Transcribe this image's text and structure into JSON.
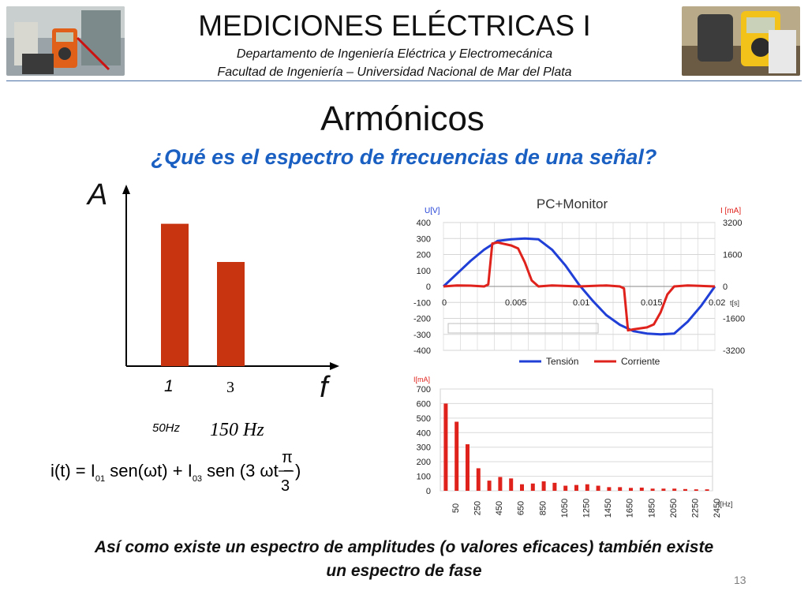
{
  "header": {
    "title": "MEDICIONES ELÉCTRICAS I",
    "subtitle_1": "Departamento de Ingeniería Eléctrica y Electromecánica",
    "subtitle_2": "Facultad de Ingeniería – Universidad Nacional de Mar del Plata"
  },
  "slide": {
    "title": "Armónicos",
    "question": "¿Qué es el espectro de frecuencias de una señal?",
    "footer_line_1": "Así como existe un espectro de amplitudes (o valores eficaces) también existe",
    "footer_line_2": "un espectro de fase",
    "page_number": "13"
  },
  "spectrum_sketch": {
    "y_axis_letter": "A",
    "x_axis_letter": "f",
    "harmonic_1_label": "1",
    "harmonic_3_label": "3",
    "freq_1": "50Hz",
    "freq_3": "150 Hz",
    "equation": "i(t) = I01 sen(ωt) + I03 sen(3 ωt − π/3)"
  },
  "chart_data": [
    {
      "type": "bar",
      "categories": [
        "1",
        "3"
      ],
      "values": [
        0.82,
        0.6
      ],
      "xlabel": "f",
      "ylabel": "A",
      "color": "#c8340f"
    },
    {
      "type": "line",
      "title": "PC+Monitor",
      "ylabel": "U[V]",
      "y2label": "I [mA]",
      "xlabel": "t[s]",
      "ylim": [
        -400,
        400
      ],
      "y2lim": [
        -3200,
        3200
      ],
      "yticks": [
        "400",
        "300",
        "200",
        "100",
        "0",
        "-100",
        "-200",
        "-300",
        "-400"
      ],
      "y2ticks": [
        "3200",
        "1600",
        "0",
        "-1600",
        "-3200"
      ],
      "xticks": [
        "0",
        "0.005",
        "0.01",
        "0.015",
        "0.02"
      ],
      "series": [
        {
          "name": "Tensión",
          "axis": "left",
          "color": "#1f3fd6",
          "x": [
            0,
            0.001,
            0.002,
            0.003,
            0.004,
            0.005,
            0.006,
            0.007,
            0.008,
            0.009,
            0.01,
            0.011,
            0.012,
            0.013,
            0.014,
            0.015,
            0.016,
            0.017,
            0.018,
            0.019,
            0.02
          ],
          "y": [
            0,
            80,
            160,
            230,
            285,
            295,
            300,
            295,
            230,
            130,
            10,
            -90,
            -180,
            -240,
            -280,
            -295,
            -300,
            -295,
            -220,
            -120,
            0
          ]
        },
        {
          "name": "Corriente",
          "axis": "right",
          "color": "#e0221c",
          "x": [
            0,
            0.001,
            0.002,
            0.003,
            0.0033,
            0.0036,
            0.004,
            0.005,
            0.0055,
            0.006,
            0.0065,
            0.007,
            0.008,
            0.01,
            0.012,
            0.013,
            0.0133,
            0.0136,
            0.014,
            0.015,
            0.0155,
            0.016,
            0.0165,
            0.017,
            0.018,
            0.02
          ],
          "y": [
            0,
            50,
            40,
            0,
            100,
            2150,
            2200,
            2050,
            1900,
            1200,
            300,
            0,
            50,
            0,
            50,
            0,
            -100,
            -2200,
            -2150,
            -2050,
            -1900,
            -1300,
            -400,
            0,
            50,
            0
          ]
        }
      ]
    },
    {
      "type": "bar",
      "ylabel": "I[mA]",
      "xlabel": "f[Hz]",
      "ylim": [
        0,
        700
      ],
      "yticks": [
        "700",
        "600",
        "500",
        "400",
        "300",
        "200",
        "100",
        "0"
      ],
      "xticks": [
        "50",
        "250",
        "450",
        "650",
        "850",
        "1050",
        "1250",
        "1450",
        "1650",
        "1850",
        "2050",
        "2250",
        "2450"
      ],
      "color": "#e0221c",
      "x": [
        50,
        150,
        250,
        350,
        450,
        550,
        650,
        750,
        850,
        950,
        1050,
        1150,
        1250,
        1350,
        1450,
        1550,
        1650,
        1750,
        1850,
        1950,
        2050,
        2150,
        2250,
        2350,
        2450
      ],
      "values": [
        600,
        475,
        320,
        155,
        70,
        95,
        85,
        45,
        50,
        65,
        55,
        35,
        40,
        45,
        35,
        25,
        25,
        20,
        22,
        15,
        15,
        15,
        12,
        10,
        10
      ]
    }
  ]
}
